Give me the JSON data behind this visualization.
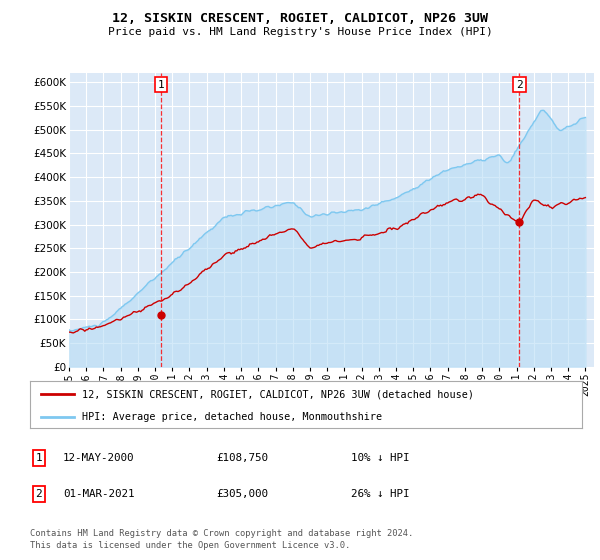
{
  "title": "12, SISKIN CRESCENT, ROGIET, CALDICOT, NP26 3UW",
  "subtitle": "Price paid vs. HM Land Registry's House Price Index (HPI)",
  "bg_color": "#dce9f7",
  "plot_bg_color": "#dce9f7",
  "grid_color": "#ffffff",
  "hpi_color": "#7ec8f0",
  "hpi_fill_color": "#b8ddf5",
  "price_color": "#cc0000",
  "annotation1": [
    "1",
    "12-MAY-2000",
    "£108,750",
    "10% ↓ HPI"
  ],
  "annotation2": [
    "2",
    "01-MAR-2021",
    "£305,000",
    "26% ↓ HPI"
  ],
  "footer1": "Contains HM Land Registry data © Crown copyright and database right 2024.",
  "footer2": "This data is licensed under the Open Government Licence v3.0.",
  "legend1": "12, SISKIN CRESCENT, ROGIET, CALDICOT, NP26 3UW (detached house)",
  "legend2": "HPI: Average price, detached house, Monmouthshire",
  "ylim": [
    0,
    620000
  ],
  "ytick_step": 50000,
  "year_start": 1995,
  "year_end": 2025
}
